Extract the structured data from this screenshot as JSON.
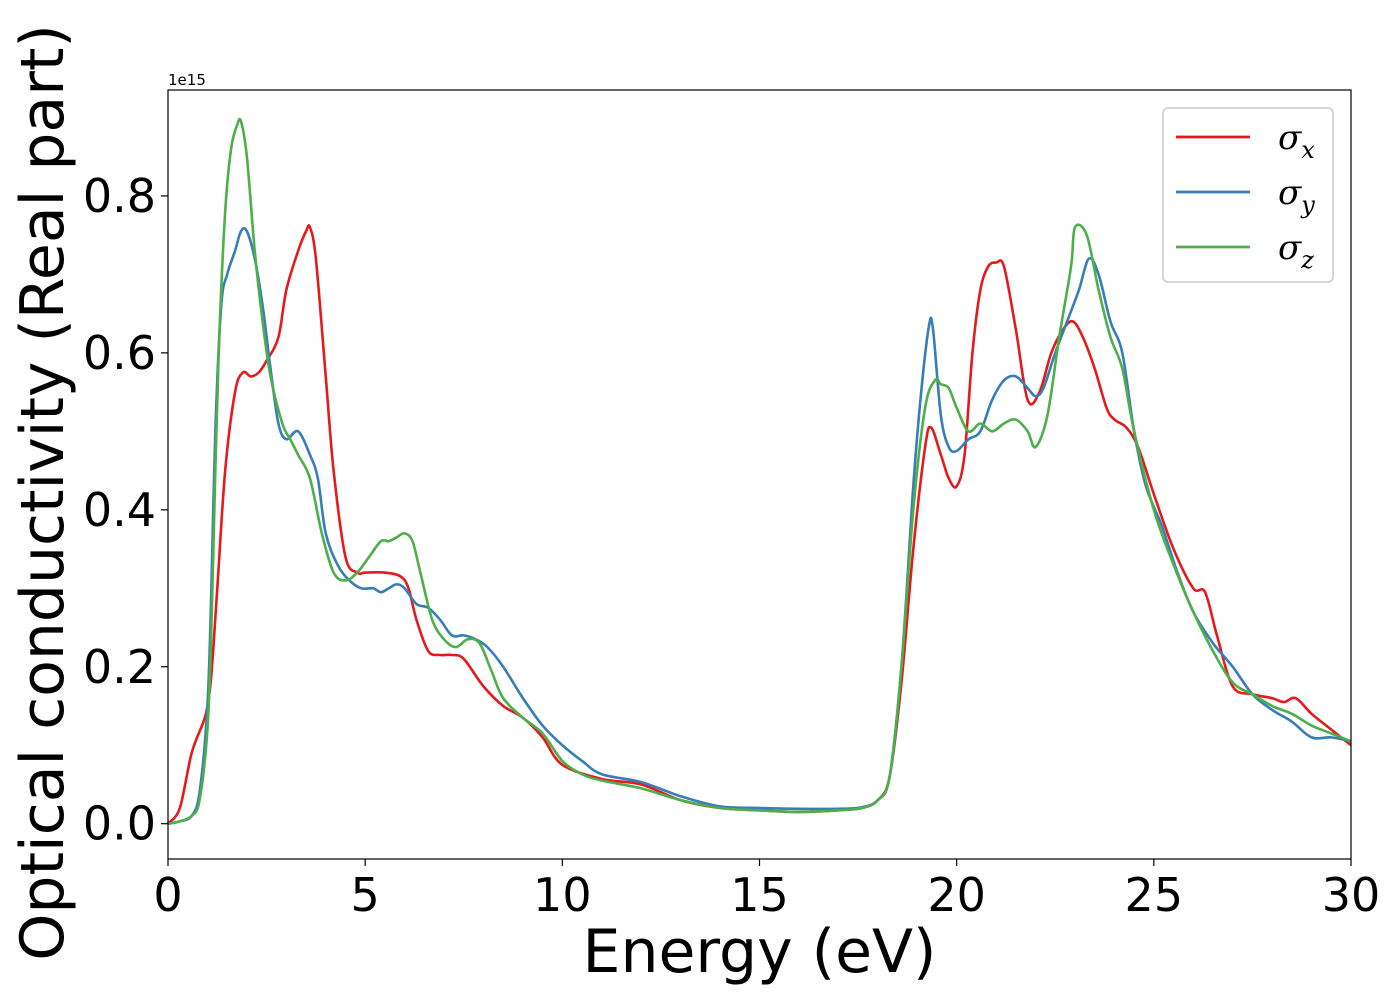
{
  "chart_data": {
    "type": "line",
    "title": "",
    "xlabel": "Energy (eV)",
    "ylabel": "Optical conductivity (Real part)",
    "y_offset_text": "1e15",
    "xlim": [
      0,
      30
    ],
    "ylim": [
      -0.045,
      0.935
    ],
    "x_ticks": [
      0,
      5,
      10,
      15,
      20,
      25,
      30
    ],
    "x_tick_labels": [
      "0",
      "5",
      "10",
      "15",
      "20",
      "25",
      "30"
    ],
    "y_ticks": [
      0.0,
      0.2,
      0.4,
      0.6,
      0.8
    ],
    "y_tick_labels": [
      "0.0",
      "0.2",
      "0.4",
      "0.6",
      "0.8"
    ],
    "grid": false,
    "legend": "top-right",
    "series": [
      {
        "name": "σx",
        "symbol": "σ",
        "subscript": "x",
        "color": "#e41a1c",
        "x": [
          0,
          0.3,
          0.6,
          0.9,
          1.0,
          1.1,
          1.25,
          1.45,
          1.7,
          1.9,
          2.1,
          2.3,
          2.5,
          2.8,
          3.0,
          3.3,
          3.5,
          3.6,
          3.75,
          4.0,
          4.2,
          4.5,
          4.8,
          5.0,
          5.5,
          5.9,
          6.1,
          6.3,
          6.6,
          6.9,
          7.2,
          7.5,
          8.0,
          8.5,
          9.0,
          9.5,
          10.0,
          11.0,
          12.0,
          13.0,
          14.0,
          15.0,
          16.0,
          17.0,
          17.6,
          18.0,
          18.3,
          18.6,
          18.9,
          19.2,
          19.35,
          19.6,
          19.8,
          20.0,
          20.2,
          20.4,
          20.6,
          20.8,
          21.0,
          21.2,
          21.5,
          21.8,
          22.1,
          22.4,
          22.7,
          22.95,
          23.2,
          23.5,
          23.8,
          24.0,
          24.3,
          24.6,
          25.0,
          25.5,
          26.0,
          26.3,
          26.6,
          27.0,
          27.5,
          28.0,
          28.3,
          28.6,
          29.0,
          29.5,
          30.0
        ],
        "y": [
          0.0,
          0.02,
          0.09,
          0.13,
          0.15,
          0.19,
          0.3,
          0.45,
          0.55,
          0.575,
          0.57,
          0.575,
          0.59,
          0.62,
          0.68,
          0.73,
          0.755,
          0.76,
          0.72,
          0.57,
          0.45,
          0.34,
          0.32,
          0.32,
          0.32,
          0.315,
          0.3,
          0.26,
          0.22,
          0.215,
          0.215,
          0.21,
          0.175,
          0.15,
          0.135,
          0.11,
          0.075,
          0.057,
          0.05,
          0.03,
          0.02,
          0.017,
          0.015,
          0.017,
          0.02,
          0.03,
          0.06,
          0.18,
          0.35,
          0.48,
          0.505,
          0.47,
          0.44,
          0.43,
          0.47,
          0.6,
          0.68,
          0.71,
          0.715,
          0.71,
          0.63,
          0.54,
          0.55,
          0.6,
          0.63,
          0.64,
          0.62,
          0.58,
          0.53,
          0.515,
          0.505,
          0.48,
          0.42,
          0.35,
          0.3,
          0.295,
          0.24,
          0.175,
          0.165,
          0.16,
          0.155,
          0.16,
          0.14,
          0.12,
          0.1
        ]
      },
      {
        "name": "σy",
        "symbol": "σ",
        "subscript": "y",
        "color": "#377eb8",
        "x": [
          0,
          0.3,
          0.6,
          0.8,
          1.0,
          1.1,
          1.2,
          1.35,
          1.5,
          1.7,
          1.85,
          2.0,
          2.2,
          2.4,
          2.6,
          2.8,
          3.0,
          3.3,
          3.6,
          3.8,
          4.0,
          4.3,
          4.6,
          4.9,
          5.2,
          5.4,
          5.6,
          5.8,
          6.0,
          6.3,
          6.6,
          6.9,
          7.2,
          7.5,
          7.8,
          8.1,
          8.5,
          9.0,
          9.5,
          10.0,
          10.5,
          11.0,
          12.0,
          13.0,
          14.0,
          15.0,
          16.0,
          17.0,
          17.6,
          18.0,
          18.3,
          18.6,
          18.9,
          19.1,
          19.3,
          19.4,
          19.6,
          19.8,
          20.0,
          20.3,
          20.6,
          20.9,
          21.2,
          21.5,
          21.8,
          22.0,
          22.2,
          22.5,
          22.8,
          23.1,
          23.35,
          23.6,
          23.9,
          24.2,
          24.5,
          24.8,
          25.2,
          25.6,
          26.0,
          26.5,
          27.0,
          27.5,
          28.0,
          28.5,
          29.0,
          29.5,
          30.0
        ],
        "y": [
          0.0,
          0.003,
          0.01,
          0.04,
          0.15,
          0.3,
          0.5,
          0.66,
          0.7,
          0.73,
          0.755,
          0.755,
          0.72,
          0.66,
          0.58,
          0.51,
          0.49,
          0.5,
          0.47,
          0.44,
          0.37,
          0.33,
          0.31,
          0.3,
          0.3,
          0.295,
          0.3,
          0.305,
          0.3,
          0.28,
          0.275,
          0.26,
          0.24,
          0.24,
          0.235,
          0.225,
          0.2,
          0.16,
          0.125,
          0.1,
          0.08,
          0.063,
          0.053,
          0.035,
          0.022,
          0.02,
          0.019,
          0.019,
          0.021,
          0.03,
          0.06,
          0.2,
          0.43,
          0.55,
          0.635,
          0.63,
          0.52,
          0.48,
          0.475,
          0.49,
          0.5,
          0.54,
          0.565,
          0.57,
          0.555,
          0.545,
          0.555,
          0.6,
          0.64,
          0.68,
          0.72,
          0.7,
          0.64,
          0.6,
          0.5,
          0.43,
          0.38,
          0.32,
          0.27,
          0.23,
          0.2,
          0.165,
          0.145,
          0.13,
          0.11,
          0.11,
          0.105
        ]
      },
      {
        "name": "σz",
        "symbol": "σ",
        "subscript": "z",
        "color": "#4daf4a",
        "x": [
          0,
          0.3,
          0.6,
          0.8,
          1.0,
          1.1,
          1.2,
          1.3,
          1.45,
          1.6,
          1.75,
          1.85,
          2.0,
          2.2,
          2.4,
          2.6,
          2.9,
          3.1,
          3.3,
          3.6,
          3.9,
          4.2,
          4.5,
          4.8,
          5.1,
          5.4,
          5.6,
          5.8,
          6.0,
          6.2,
          6.4,
          6.7,
          7.0,
          7.3,
          7.6,
          7.9,
          8.2,
          8.5,
          9.0,
          9.5,
          10.0,
          10.5,
          11.0,
          12.0,
          13.0,
          14.0,
          15.0,
          16.0,
          17.0,
          17.6,
          18.0,
          18.3,
          18.6,
          18.9,
          19.2,
          19.45,
          19.6,
          19.8,
          20.0,
          20.3,
          20.6,
          20.9,
          21.2,
          21.5,
          21.8,
          22.0,
          22.3,
          22.6,
          22.9,
          23.0,
          23.3,
          23.6,
          23.9,
          24.2,
          24.5,
          25.0,
          25.5,
          26.0,
          26.5,
          27.0,
          27.5,
          28.0,
          28.5,
          29.0,
          29.5,
          30.0
        ],
        "y": [
          0.0,
          0.003,
          0.01,
          0.03,
          0.12,
          0.25,
          0.45,
          0.62,
          0.78,
          0.86,
          0.89,
          0.895,
          0.85,
          0.73,
          0.64,
          0.57,
          0.51,
          0.49,
          0.47,
          0.44,
          0.37,
          0.32,
          0.31,
          0.32,
          0.34,
          0.36,
          0.36,
          0.365,
          0.37,
          0.36,
          0.32,
          0.26,
          0.235,
          0.225,
          0.235,
          0.23,
          0.195,
          0.16,
          0.135,
          0.115,
          0.08,
          0.063,
          0.055,
          0.045,
          0.03,
          0.02,
          0.017,
          0.015,
          0.017,
          0.02,
          0.03,
          0.06,
          0.2,
          0.4,
          0.53,
          0.565,
          0.56,
          0.555,
          0.53,
          0.5,
          0.51,
          0.5,
          0.51,
          0.515,
          0.5,
          0.48,
          0.52,
          0.62,
          0.71,
          0.76,
          0.75,
          0.68,
          0.62,
          0.58,
          0.5,
          0.4,
          0.33,
          0.27,
          0.22,
          0.18,
          0.165,
          0.15,
          0.14,
          0.125,
          0.115,
          0.105
        ]
      }
    ]
  }
}
